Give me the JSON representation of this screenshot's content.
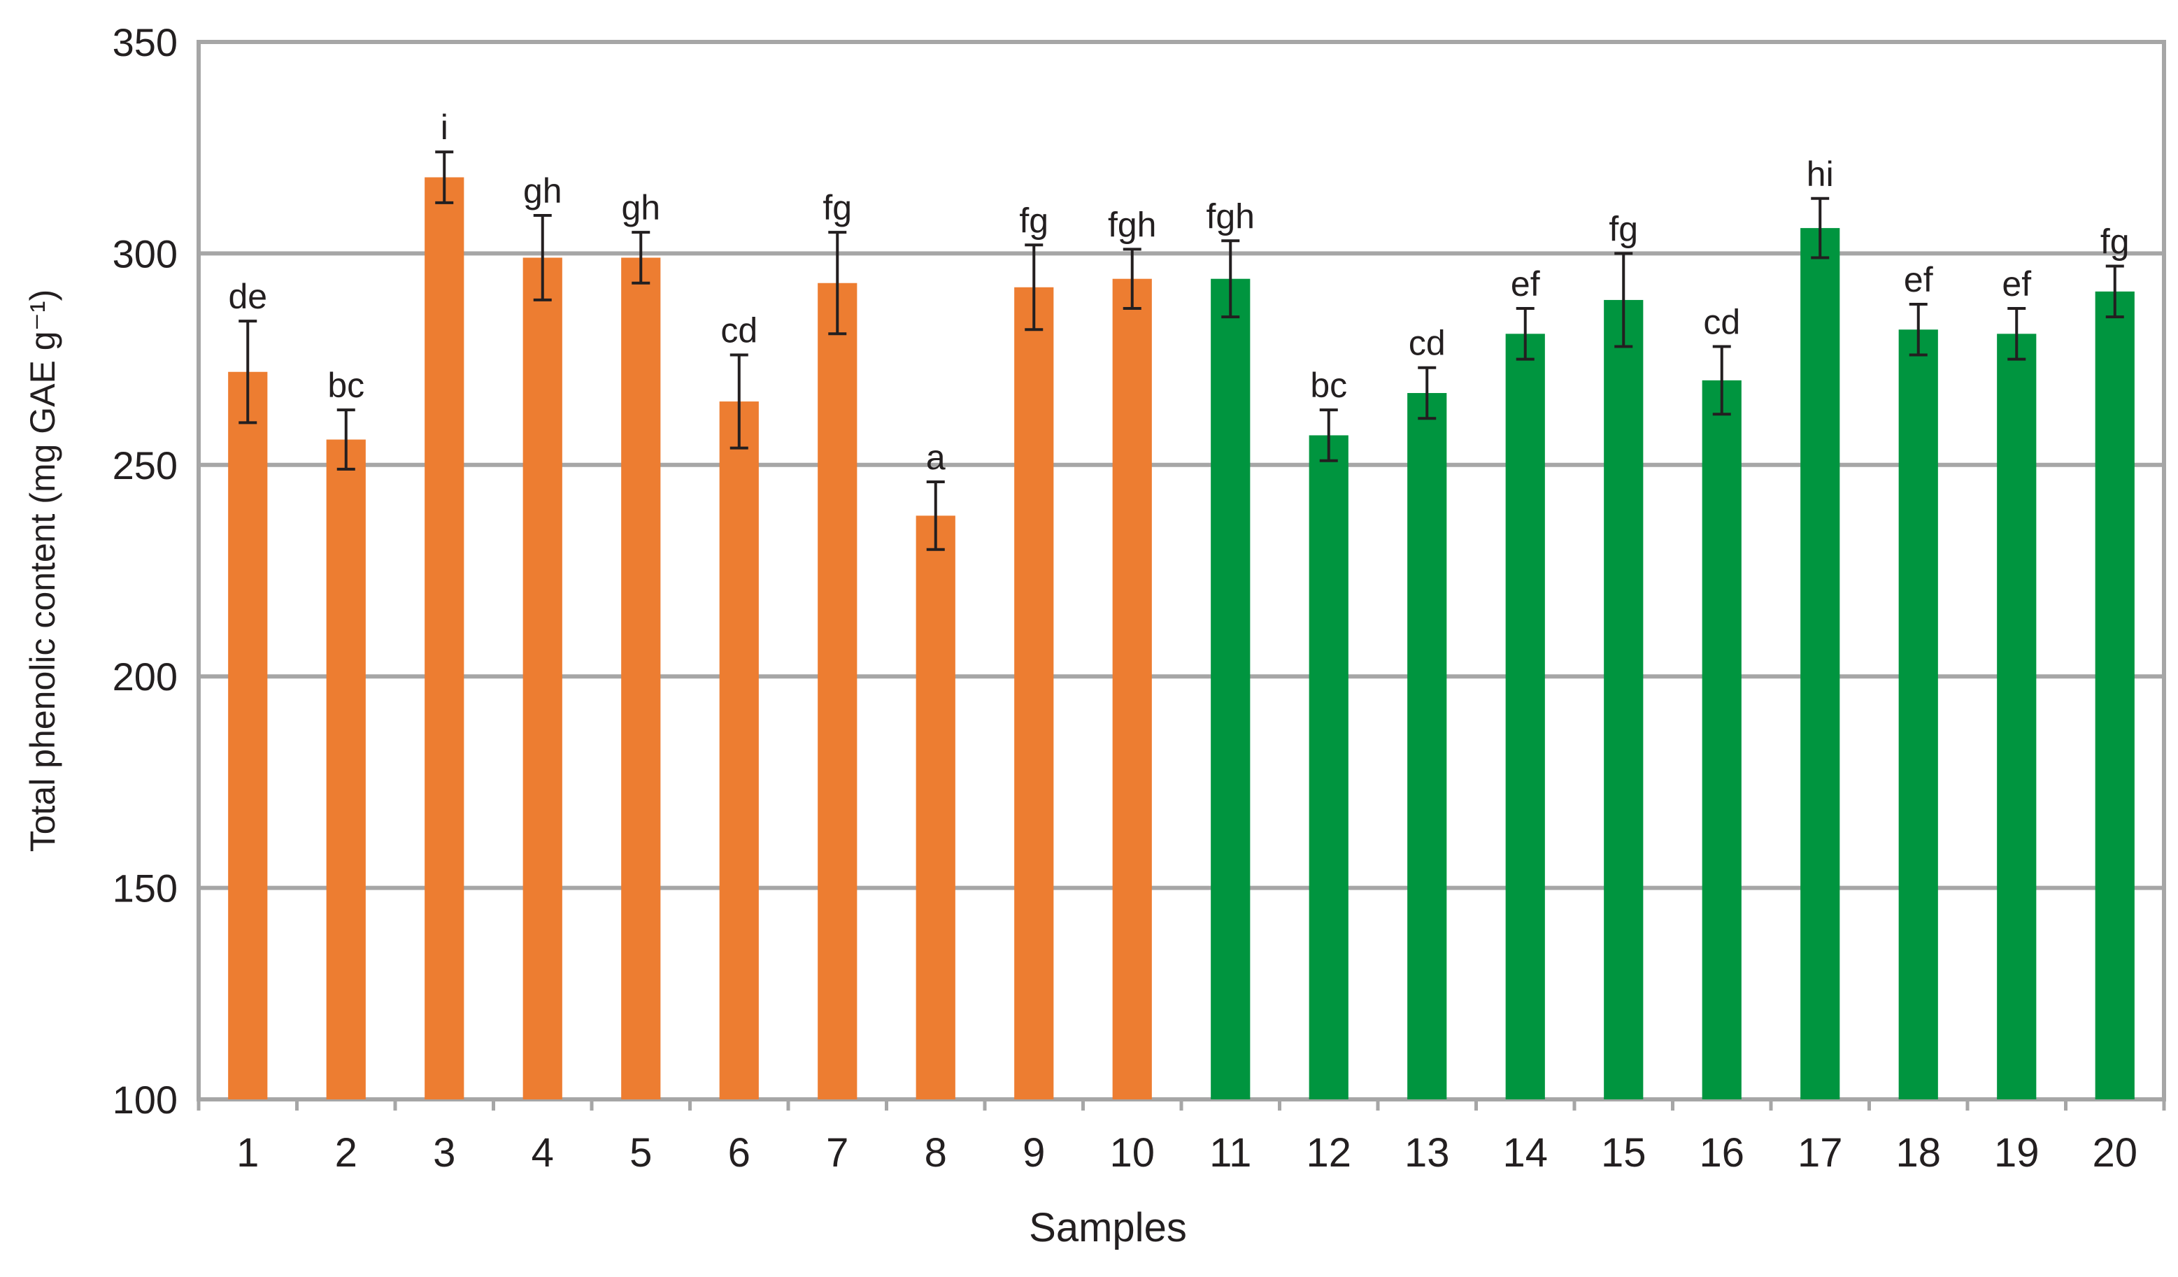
{
  "chart_data": {
    "type": "bar",
    "title": "",
    "xlabel": "Samples",
    "ylabel": "Total phenolic content (mg GAE g⁻¹)",
    "ylim": [
      100,
      350
    ],
    "yticks": [
      100,
      150,
      200,
      250,
      300,
      350
    ],
    "grid": true,
    "legend": "none",
    "categories": [
      "1",
      "2",
      "3",
      "4",
      "5",
      "6",
      "7",
      "8",
      "9",
      "10",
      "11",
      "12",
      "13",
      "14",
      "15",
      "16",
      "17",
      "18",
      "19",
      "20"
    ],
    "values": [
      272,
      256,
      318,
      299,
      299,
      265,
      293,
      238,
      292,
      294,
      294,
      257,
      267,
      281,
      289,
      270,
      306,
      282,
      281,
      291
    ],
    "errors": [
      12,
      7,
      6,
      10,
      6,
      11,
      12,
      8,
      10,
      7,
      9,
      6,
      6,
      6,
      11,
      8,
      7,
      6,
      6,
      6
    ],
    "significance_labels": [
      "de",
      "bc",
      "i",
      "gh",
      "gh",
      "cd",
      "fg",
      "a",
      "fg",
      "fgh",
      "fgh",
      "bc",
      "cd",
      "ef",
      "fg",
      "cd",
      "hi",
      "ef",
      "ef",
      "fg"
    ],
    "colors": {
      "group_1": "#ed7d31",
      "group_2": "#00953f",
      "axis": "#a6a6a6",
      "grid": "#a6a6a6",
      "text": "#231f20"
    },
    "group_split_index": 10
  }
}
